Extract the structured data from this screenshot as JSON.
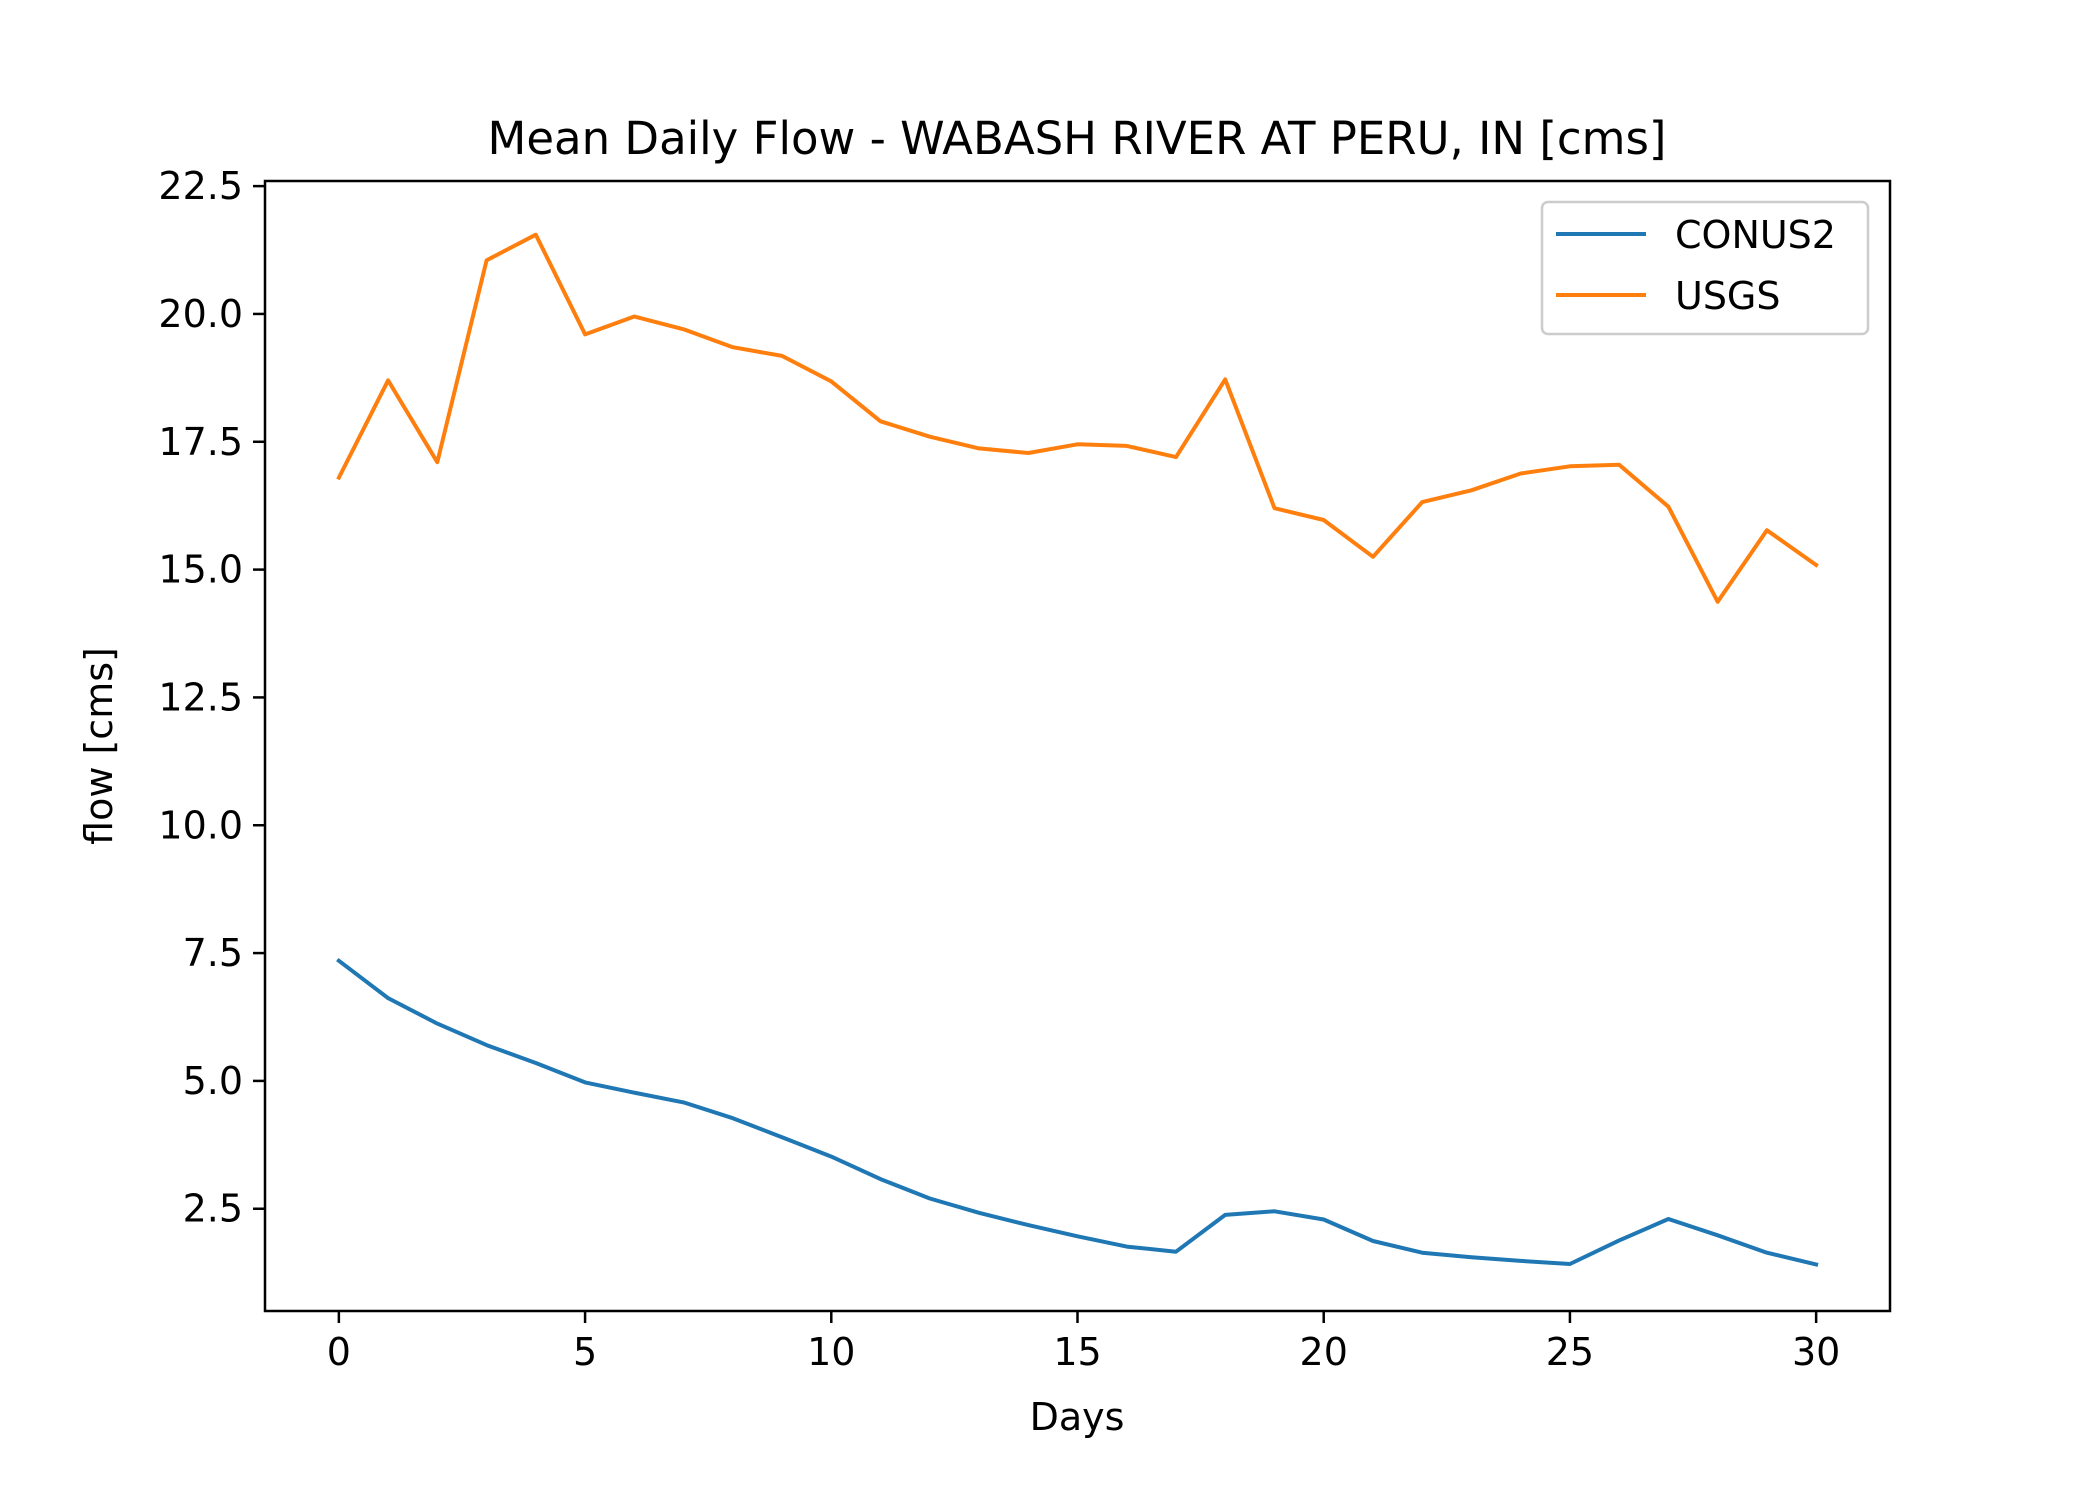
{
  "chart_data": {
    "type": "line",
    "title": "Mean Daily Flow - WABASH RIVER AT PERU, IN [cms]",
    "xlabel": "Days",
    "ylabel": "flow [cms]",
    "xlim": [
      -1.5,
      31.5
    ],
    "ylim": [
      0.5,
      22.6
    ],
    "xticks": [
      0,
      5,
      10,
      15,
      20,
      25,
      30
    ],
    "xtick_labels": [
      "0",
      "5",
      "10",
      "15",
      "20",
      "25",
      "30"
    ],
    "yticks": [
      2.5,
      5.0,
      7.5,
      10.0,
      12.5,
      15.0,
      17.5,
      20.0,
      22.5
    ],
    "ytick_labels": [
      "2.5",
      "5.0",
      "7.5",
      "10.0",
      "12.5",
      "15.0",
      "17.5",
      "20.0",
      "22.5"
    ],
    "grid": false,
    "legend_position": "top-right",
    "x": [
      0,
      1,
      2,
      3,
      4,
      5,
      6,
      7,
      8,
      9,
      10,
      11,
      12,
      13,
      14,
      15,
      16,
      17,
      18,
      19,
      20,
      21,
      22,
      23,
      24,
      25,
      26,
      27,
      28,
      29,
      30
    ],
    "series": [
      {
        "name": "CONUS2",
        "color": "#1f77b4",
        "values": [
          7.35,
          6.62,
          6.12,
          5.7,
          5.35,
          4.97,
          4.77,
          4.58,
          4.27,
          3.9,
          3.52,
          3.08,
          2.7,
          2.42,
          2.18,
          1.96,
          1.76,
          1.66,
          2.38,
          2.45,
          2.29,
          1.87,
          1.64,
          1.55,
          1.48,
          1.42,
          1.88,
          2.3,
          1.98,
          1.64,
          1.41
        ]
      },
      {
        "name": "USGS",
        "color": "#ff7f0e",
        "values": [
          16.8,
          18.7,
          17.1,
          21.05,
          21.55,
          19.6,
          19.95,
          19.7,
          19.35,
          19.18,
          18.68,
          17.9,
          17.6,
          17.37,
          17.28,
          17.45,
          17.42,
          17.2,
          18.72,
          16.2,
          15.97,
          15.25,
          16.32,
          16.55,
          16.88,
          17.02,
          17.05,
          16.23,
          14.37,
          15.77,
          15.09
        ]
      }
    ]
  }
}
